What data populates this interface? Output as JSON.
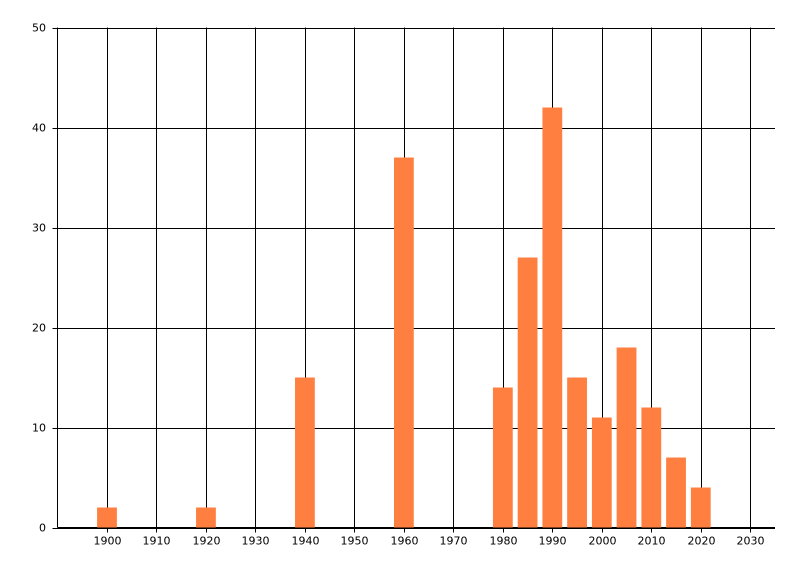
{
  "chart_data": {
    "type": "bar",
    "x": [
      1900,
      1920,
      1940,
      1960,
      1980,
      1985,
      1990,
      1995,
      2000,
      2005,
      2010,
      2015,
      2020
    ],
    "values": [
      2,
      2,
      15,
      37,
      14,
      27,
      42,
      15,
      11,
      18,
      12,
      7,
      4
    ],
    "color": "#ff7f40",
    "xlim": [
      1890,
      2035
    ],
    "xticks": [
      1900,
      1910,
      1920,
      1930,
      1940,
      1950,
      1960,
      1970,
      1980,
      1990,
      2000,
      2010,
      2020,
      2030
    ],
    "ylim": [
      0,
      50
    ],
    "yticks": [
      0,
      10,
      20,
      30,
      40,
      50
    ],
    "grid": true
  }
}
